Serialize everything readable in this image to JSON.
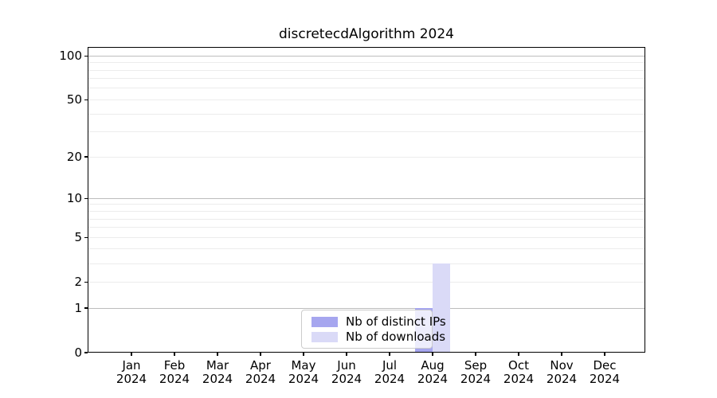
{
  "title": "discretecdAlgorithm 2024",
  "legend": {
    "items": [
      {
        "label": "Nb of distinct IPs",
        "color": "#a6a6ef"
      },
      {
        "label": "Nb of downloads",
        "color": "#dadaf7"
      }
    ]
  },
  "colors": {
    "bar_distinct_ips": "#a6a6ef",
    "bar_downloads": "#dadaf7",
    "grid_minor": "#ececec",
    "grid_major": "#bdbdbd",
    "axis": "#000000",
    "legend_border": "#cccccc",
    "legend_background": "rgba(255,255,255,0.8)"
  },
  "chart_data": {
    "type": "bar",
    "title": "discretecdAlgorithm 2024",
    "categories": [
      "Jan",
      "Feb",
      "Mar",
      "Apr",
      "May",
      "Jun",
      "Jul",
      "Aug",
      "Sep",
      "Oct",
      "Nov",
      "Dec"
    ],
    "year_label": "2024",
    "series": [
      {
        "name": "Nb of distinct IPs",
        "color": "#a6a6ef",
        "values": [
          0,
          0,
          0,
          0,
          0,
          0,
          0,
          1,
          0,
          0,
          0,
          0
        ]
      },
      {
        "name": "Nb of downloads",
        "color": "#dadaf7",
        "values": [
          0,
          0,
          0,
          0,
          0,
          0,
          0,
          3,
          0,
          0,
          0,
          0
        ]
      }
    ],
    "xlabel": "",
    "ylabel": "",
    "yscale": "log1p",
    "ylim": [
      0,
      115
    ],
    "y_ticks": [
      0,
      1,
      2,
      5,
      10,
      20,
      50,
      100
    ],
    "grid_minor_values": [
      2,
      3,
      4,
      5,
      6,
      7,
      8,
      9,
      20,
      30,
      40,
      50,
      60,
      70,
      80,
      90
    ],
    "grid_major_values": [
      1,
      10,
      100
    ],
    "grid": true,
    "legend_position": "inside-bottom-center"
  }
}
